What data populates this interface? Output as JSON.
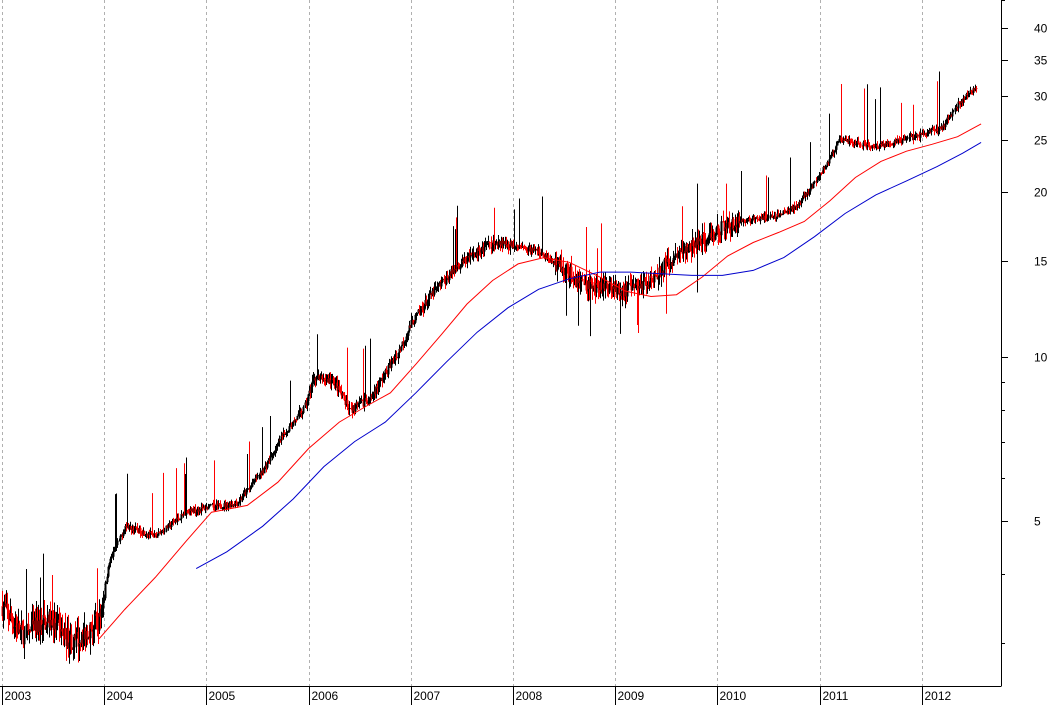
{
  "chart_data": {
    "type": "candlestick",
    "y_scale": "log",
    "ylim": [
      2.5,
      45
    ],
    "x_range": [
      "2003-01-01",
      "2012-07-15"
    ],
    "grid": {
      "vertical": true,
      "horizontal": false
    },
    "x_tick_labels": [
      "2003",
      "2004",
      "2005",
      "2006",
      "2007",
      "2008",
      "2009",
      "2010",
      "2011",
      "2012"
    ],
    "y_ticks": [
      5,
      10,
      15,
      20,
      25,
      30,
      35,
      40
    ],
    "y_tick_labels": [
      "5",
      "10",
      "15",
      "20",
      "25",
      "30",
      "35",
      "40"
    ],
    "colors": {
      "up": "#000000",
      "down": "#ff0000",
      "ma_fast": "#ff0000",
      "ma_slow": "#0000cc",
      "grid": "#b0b0b0"
    },
    "price_path": [
      [
        2003.0,
        3.5
      ],
      [
        2003.2,
        3.1
      ],
      [
        2003.45,
        3.3
      ],
      [
        2003.7,
        3.0
      ],
      [
        2003.95,
        3.3
      ],
      [
        2004.05,
        4.2
      ],
      [
        2004.2,
        4.9
      ],
      [
        2004.5,
        4.7
      ],
      [
        2004.8,
        5.2
      ],
      [
        2005.0,
        5.3
      ],
      [
        2005.3,
        5.4
      ],
      [
        2005.55,
        6.2
      ],
      [
        2005.75,
        7.2
      ],
      [
        2005.95,
        8.0
      ],
      [
        2006.05,
        9.2
      ],
      [
        2006.25,
        9.0
      ],
      [
        2006.4,
        8.0
      ],
      [
        2006.6,
        8.4
      ],
      [
        2006.85,
        10.0
      ],
      [
        2007.0,
        11.5
      ],
      [
        2007.2,
        13.0
      ],
      [
        2007.4,
        14.3
      ],
      [
        2007.6,
        15.4
      ],
      [
        2007.85,
        16.3
      ],
      [
        2008.0,
        16.0
      ],
      [
        2008.25,
        15.6
      ],
      [
        2008.5,
        14.5
      ],
      [
        2008.7,
        13.5
      ],
      [
        2008.9,
        13.5
      ],
      [
        2009.1,
        13.2
      ],
      [
        2009.3,
        13.7
      ],
      [
        2009.5,
        14.8
      ],
      [
        2009.7,
        15.7
      ],
      [
        2009.9,
        16.5
      ],
      [
        2010.05,
        17.3
      ],
      [
        2010.3,
        17.8
      ],
      [
        2010.55,
        18.0
      ],
      [
        2010.8,
        19.0
      ],
      [
        2011.0,
        21.5
      ],
      [
        2011.2,
        25.0
      ],
      [
        2011.5,
        24.3
      ],
      [
        2011.8,
        24.8
      ],
      [
        2012.0,
        25.5
      ],
      [
        2012.2,
        26.3
      ],
      [
        2012.35,
        29.0
      ],
      [
        2012.55,
        31.5
      ]
    ],
    "ma_fast_path": [
      [
        2003.95,
        3.05
      ],
      [
        2004.2,
        3.45
      ],
      [
        2004.5,
        3.95
      ],
      [
        2004.8,
        4.6
      ],
      [
        2005.05,
        5.2
      ],
      [
        2005.4,
        5.35
      ],
      [
        2005.7,
        5.9
      ],
      [
        2006.0,
        6.8
      ],
      [
        2006.3,
        7.6
      ],
      [
        2006.55,
        8.1
      ],
      [
        2006.8,
        8.6
      ],
      [
        2007.05,
        9.7
      ],
      [
        2007.3,
        11.0
      ],
      [
        2007.55,
        12.5
      ],
      [
        2007.8,
        13.8
      ],
      [
        2008.05,
        14.8
      ],
      [
        2008.3,
        15.2
      ],
      [
        2008.55,
        14.9
      ],
      [
        2008.85,
        14.0
      ],
      [
        2009.1,
        13.2
      ],
      [
        2009.35,
        12.9
      ],
      [
        2009.6,
        13.0
      ],
      [
        2009.85,
        14.0
      ],
      [
        2010.1,
        15.3
      ],
      [
        2010.35,
        16.2
      ],
      [
        2010.6,
        16.9
      ],
      [
        2010.85,
        17.7
      ],
      [
        2011.1,
        19.3
      ],
      [
        2011.35,
        21.3
      ],
      [
        2011.6,
        22.8
      ],
      [
        2011.85,
        23.8
      ],
      [
        2012.1,
        24.5
      ],
      [
        2012.35,
        25.3
      ],
      [
        2012.58,
        26.7
      ]
    ],
    "ma_slow_path": [
      [
        2004.9,
        4.1
      ],
      [
        2005.2,
        4.4
      ],
      [
        2005.55,
        4.9
      ],
      [
        2005.85,
        5.5
      ],
      [
        2006.15,
        6.3
      ],
      [
        2006.45,
        7.0
      ],
      [
        2006.75,
        7.6
      ],
      [
        2007.05,
        8.6
      ],
      [
        2007.35,
        9.8
      ],
      [
        2007.65,
        11.1
      ],
      [
        2007.95,
        12.3
      ],
      [
        2008.25,
        13.3
      ],
      [
        2008.55,
        13.9
      ],
      [
        2008.85,
        14.3
      ],
      [
        2009.15,
        14.3
      ],
      [
        2009.45,
        14.2
      ],
      [
        2009.75,
        14.1
      ],
      [
        2010.05,
        14.1
      ],
      [
        2010.35,
        14.4
      ],
      [
        2010.65,
        15.2
      ],
      [
        2010.95,
        16.6
      ],
      [
        2011.25,
        18.3
      ],
      [
        2011.55,
        19.8
      ],
      [
        2011.85,
        21.0
      ],
      [
        2012.15,
        22.3
      ],
      [
        2012.4,
        23.6
      ],
      [
        2012.58,
        24.7
      ]
    ]
  }
}
